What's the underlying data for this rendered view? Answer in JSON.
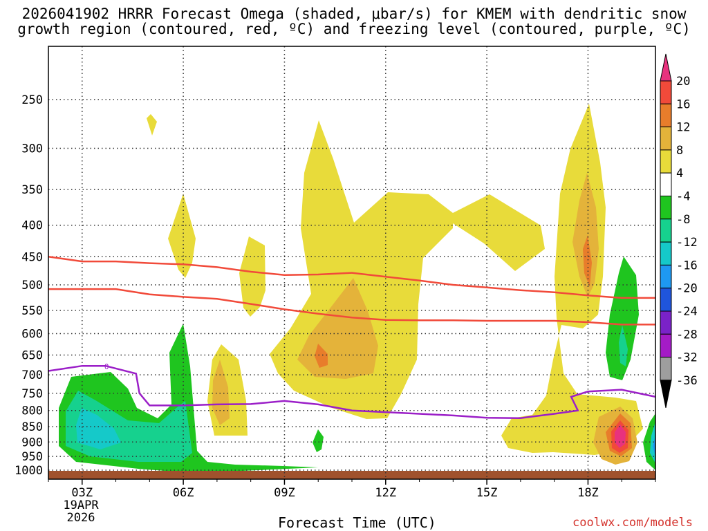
{
  "chart_data": {
    "type": "heatmap",
    "title_line1": "2026041902 HRRR Forecast Omega (shaded, μbar/s) for KMEM with dendritic snow",
    "title_line2": "growth region (contoured, red, ºC) and freezing level (contoured, purple, ºC)",
    "xlabel": "Forecast Time (UTC)",
    "credit": "coolwx.com/models",
    "x_ticks": [
      {
        "hour": 3,
        "label": "03Z"
      },
      {
        "hour": 6,
        "label": "06Z"
      },
      {
        "hour": 9,
        "label": "09Z"
      },
      {
        "hour": 12,
        "label": "12Z"
      },
      {
        "hour": 15,
        "label": "15Z"
      },
      {
        "hour": 18,
        "label": "18Z"
      }
    ],
    "date_label": [
      "19APR",
      "2026"
    ],
    "x_range": [
      2,
      20
    ],
    "y_ticks": [
      250,
      300,
      350,
      400,
      450,
      500,
      550,
      600,
      650,
      700,
      750,
      800,
      850,
      900,
      950,
      1000
    ],
    "y_range_hPa": [
      1010,
      200
    ],
    "colorbar": {
      "labels": [
        "20",
        "16",
        "12",
        "8",
        "4",
        "-4",
        "-8",
        "-12",
        "-16",
        "-20",
        "-24",
        "-28",
        "-32",
        "-36"
      ],
      "colors": [
        "#e8327e",
        "#f14a3a",
        "#e87d2b",
        "#e4b33a",
        "#e8db3a",
        "#ffffff",
        "#1fc51f",
        "#16d18e",
        "#15c9c9",
        "#1e99f2",
        "#1f55dc",
        "#7a22c8",
        "#a41bc6",
        "#9e9e9e",
        "#000000"
      ]
    },
    "series": [
      {
        "name": "dendritic growth -12C",
        "color": "#f14a3a",
        "points": [
          [
            2,
            450
          ],
          [
            3,
            458
          ],
          [
            4,
            458
          ],
          [
            5,
            461
          ],
          [
            6,
            463
          ],
          [
            7,
            468
          ],
          [
            8,
            476
          ],
          [
            9,
            482
          ],
          [
            10,
            481
          ],
          [
            11,
            478
          ],
          [
            12,
            485
          ],
          [
            13,
            492
          ],
          [
            14,
            500
          ],
          [
            15,
            505
          ],
          [
            16,
            510
          ],
          [
            17,
            514
          ],
          [
            18,
            520
          ],
          [
            19,
            525
          ],
          [
            20,
            525
          ]
        ]
      },
      {
        "name": "dendritic growth -17C",
        "color": "#f14a3a",
        "points": [
          [
            2,
            508
          ],
          [
            3,
            508
          ],
          [
            4,
            508
          ],
          [
            5,
            518
          ],
          [
            6,
            523
          ],
          [
            7,
            527
          ],
          [
            8,
            537
          ],
          [
            9,
            548
          ],
          [
            10,
            557
          ],
          [
            11,
            565
          ],
          [
            12,
            570
          ],
          [
            13,
            571
          ],
          [
            14,
            571
          ],
          [
            15,
            572
          ],
          [
            16,
            572
          ],
          [
            17,
            572
          ],
          [
            18,
            575
          ],
          [
            19,
            580
          ],
          [
            20,
            580
          ]
        ]
      },
      {
        "name": "freezing level 0C",
        "color": "#9b1fc8",
        "points": [
          [
            2,
            690
          ],
          [
            3,
            677
          ],
          [
            3.7,
            677
          ],
          [
            4.6,
            697
          ],
          [
            4.7,
            750
          ],
          [
            5.0,
            785
          ],
          [
            6,
            785
          ],
          [
            7,
            782
          ],
          [
            8,
            781
          ],
          [
            9,
            772
          ],
          [
            10,
            782
          ],
          [
            11,
            800
          ],
          [
            12,
            805
          ],
          [
            13,
            810
          ],
          [
            14,
            815
          ],
          [
            15,
            822
          ],
          [
            16,
            823
          ],
          [
            17,
            810
          ],
          [
            17.7,
            800
          ],
          [
            17.5,
            760
          ],
          [
            18,
            745
          ],
          [
            19,
            740
          ],
          [
            20,
            760
          ]
        ]
      }
    ]
  }
}
